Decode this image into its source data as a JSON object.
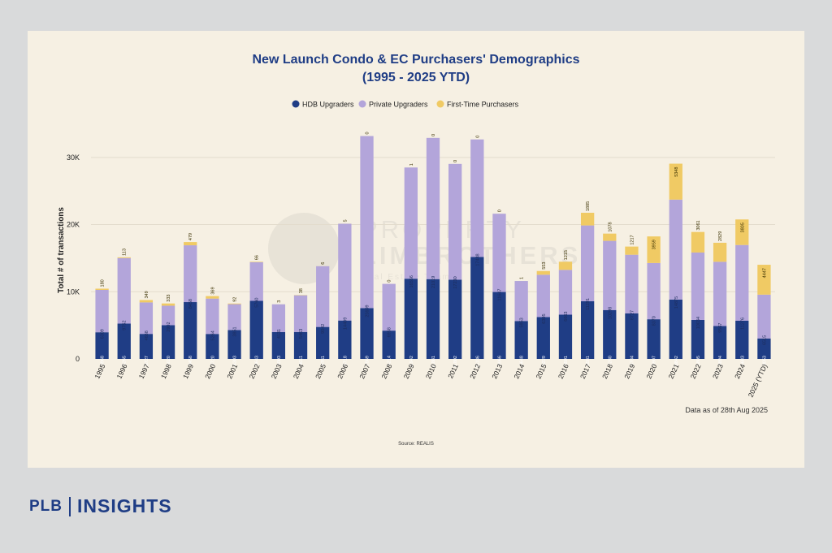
{
  "chart_data": {
    "type": "bar",
    "stacked": true,
    "title_line1": "New Launch Condo & EC Purchasers' Demographics",
    "title_line2": "(1995 - 2025 YTD)",
    "ylabel": "Total # of transactions",
    "ylim": [
      0,
      33000
    ],
    "yticks": [
      {
        "value": 0,
        "label": "0"
      },
      {
        "value": 10000,
        "label": "10K"
      },
      {
        "value": 20000,
        "label": "20K"
      },
      {
        "value": 30000,
        "label": "30K"
      }
    ],
    "categories": [
      "1995",
      "1996",
      "1997",
      "1998",
      "1999",
      "2000",
      "2001",
      "2002",
      "2003",
      "2004",
      "2005",
      "2006",
      "2007",
      "2008",
      "2009",
      "2010",
      "2011",
      "2012",
      "2013",
      "2014",
      "2015",
      "2016",
      "2017",
      "2018",
      "2019",
      "2020",
      "2021",
      "2022",
      "2023",
      "2024",
      "2025 (YTD)"
    ],
    "series": [
      {
        "name": "HDB Upgraders",
        "color": "#1f3d85",
        "values": [
          3968,
          5265,
          3727,
          5020,
          8458,
          3720,
          4303,
          8643,
          4003,
          4011,
          4761,
          5718,
          7569,
          4214,
          11942,
          11881,
          11802,
          15186,
          9966,
          5648,
          6229,
          6591,
          8581,
          7280,
          6784,
          5907,
          8842,
          5805,
          4894,
          5683,
          3053
        ]
      },
      {
        "name": "Private Upgraders",
        "color": "#b3a5da",
        "values": [
          6309,
          9752,
          4688,
          2902,
          8458,
          5264,
          3851,
          5760,
          4131,
          5463,
          9042,
          14409,
          25609,
          6958,
          16556,
          21019,
          17230,
          17488,
          11647,
          5953,
          6305,
          6663,
          11291,
          10298,
          8727,
          8370,
          14875,
          10034,
          9567,
          11276,
          6515
        ]
      },
      {
        "name": "First-Time Purchasers",
        "color": "#f0ca64",
        "values": [
          180,
          113,
          349,
          333,
          479,
          369,
          92,
          66,
          3,
          38,
          6,
          5,
          0,
          0,
          1,
          0,
          0,
          0,
          0,
          1,
          553,
          1215,
          1885,
          1078,
          1217,
          3959,
          5348,
          3061,
          2829,
          3805,
          4447
        ]
      }
    ],
    "legend_position": "top-center",
    "note": "Data as of 28th Aug 2025",
    "source": "Source: REALIS",
    "watermark_line1": "PROPERTY",
    "watermark_line2": "LIMBROTHERS",
    "watermark_line3": "Real Estate Team"
  },
  "brand": {
    "left": "PLB",
    "right": "INSIGHTS"
  }
}
